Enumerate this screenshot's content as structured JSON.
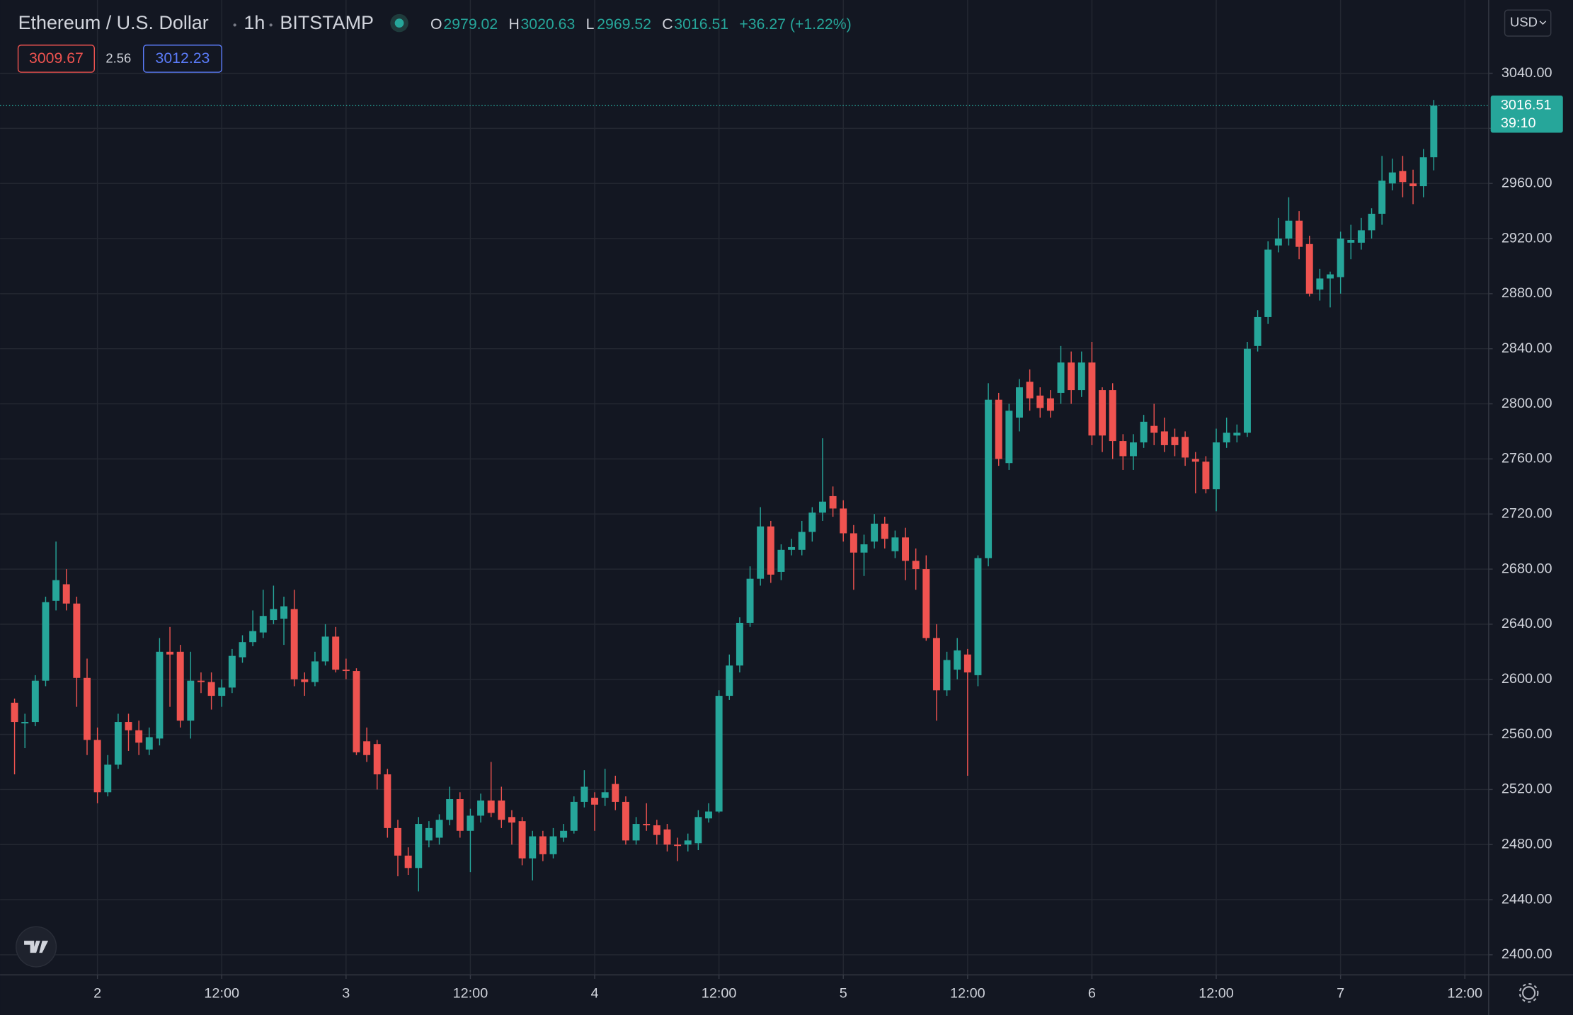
{
  "chart_data": {
    "type": "candlestick",
    "title": "Ethereum / U.S. Dollar",
    "interval": "1h",
    "exchange": "BITSTAMP",
    "ohlc_labels": [
      "O",
      "H",
      "L",
      "C"
    ],
    "change": "+36.27 (+1.22%)",
    "sell": 3009.67,
    "spread": 2.56,
    "buy": 3012.23,
    "countdown": "39:10",
    "currency": "USD",
    "up_color": "#26a69a",
    "down_color": "#ef5350",
    "grid": true,
    "ylim": [
      2385.4,
      3093.2
    ],
    "yticks": [
      {
        "value": 2400,
        "label": "2400.00"
      },
      {
        "value": 2440,
        "label": "2440.00"
      },
      {
        "value": 2480,
        "label": "2480.00"
      },
      {
        "value": 2520,
        "label": "2520.00"
      },
      {
        "value": 2560,
        "label": "2560.00"
      },
      {
        "value": 2600,
        "label": "2600.00"
      },
      {
        "value": 2640,
        "label": "2640.00"
      },
      {
        "value": 2680,
        "label": "2680.00"
      },
      {
        "value": 2720,
        "label": "2720.00"
      },
      {
        "value": 2760,
        "label": "2760.00"
      },
      {
        "value": 2800,
        "label": "2800.00"
      },
      {
        "value": 2840,
        "label": "2840.00"
      },
      {
        "value": 2880,
        "label": "2880.00"
      },
      {
        "value": 2920,
        "label": "2920.00"
      },
      {
        "value": 2960,
        "label": "2960.00"
      },
      {
        "value": 3000,
        "label": "3000.00"
      },
      {
        "value": 3040,
        "label": "3040.00"
      }
    ],
    "xlim": [
      -9.4,
      134.3
    ],
    "xticks": [
      {
        "value": 0,
        "label": "2"
      },
      {
        "value": 12,
        "label": "12:00"
      },
      {
        "value": 24,
        "label": "3"
      },
      {
        "value": 36,
        "label": "12:00"
      },
      {
        "value": 48,
        "label": "4"
      },
      {
        "value": 60,
        "label": "12:00"
      },
      {
        "value": 72,
        "label": "5"
      },
      {
        "value": 84,
        "label": "12:00"
      },
      {
        "value": 96,
        "label": "6"
      },
      {
        "value": 108,
        "label": "12:00"
      },
      {
        "value": 120,
        "label": "7"
      },
      {
        "value": 132,
        "label": "12:00"
      }
    ],
    "x": [
      -8,
      -7,
      -6,
      -5,
      -4,
      -3,
      -2,
      -1,
      0,
      1,
      2,
      3,
      4,
      5,
      6,
      7,
      8,
      9,
      10,
      11,
      12,
      13,
      14,
      15,
      16,
      17,
      18,
      19,
      20,
      21,
      22,
      23,
      24,
      25,
      26,
      27,
      28,
      29,
      30,
      31,
      32,
      33,
      34,
      35,
      36,
      37,
      38,
      39,
      40,
      41,
      42,
      43,
      44,
      45,
      46,
      47,
      48,
      49,
      50,
      51,
      52,
      53,
      54,
      55,
      56,
      57,
      58,
      59,
      60,
      61,
      62,
      63,
      64,
      65,
      66,
      67,
      68,
      69,
      70,
      71,
      72,
      73,
      74,
      75,
      76,
      77,
      78,
      79,
      80,
      81,
      82,
      83,
      84,
      85,
      86,
      87,
      88,
      89,
      90,
      91,
      92,
      93,
      94,
      95,
      96,
      97,
      98,
      99,
      100,
      101,
      102,
      103,
      104,
      105,
      106,
      107,
      108,
      109,
      110,
      111,
      112,
      113,
      114,
      115,
      116,
      117,
      118,
      119,
      120,
      121,
      122,
      123,
      124,
      125,
      126,
      127,
      128,
      129
    ],
    "open": [
      2583,
      2568,
      2569,
      2599,
      2657,
      2669,
      2655,
      2601,
      2556,
      2518,
      2538,
      2569,
      2563,
      2549,
      2557,
      2620,
      2620,
      2570,
      2599,
      2598,
      2588,
      2594,
      2616,
      2627,
      2634,
      2643,
      2644,
      2651,
      2600,
      2598,
      2613,
      2631,
      2607,
      2606,
      2555,
      2553,
      2531,
      2492,
      2472,
      2463,
      2483,
      2485,
      2498,
      2513,
      2490,
      2501,
      2512,
      2512,
      2500,
      2497,
      2470,
      2486,
      2473,
      2485,
      2490,
      2511,
      2514,
      2514,
      2524,
      2511,
      2483,
      2495,
      2494,
      2491,
      2480,
      2480,
      2481,
      2499,
      2504,
      2588,
      2610,
      2641,
      2673,
      2711,
      2678,
      2694,
      2694,
      2707,
      2721,
      2733,
      2724,
      2706,
      2692,
      2700,
      2713,
      2693,
      2703,
      2686,
      2680,
      2630,
      2592,
      2607,
      2618,
      2603,
      2688,
      2803,
      2757,
      2790,
      2816,
      2806,
      2804,
      2808,
      2830,
      2810,
      2830,
      2810,
      2810,
      2773,
      2762,
      2772,
      2784,
      2780,
      2776,
      2776,
      2760,
      2758,
      2738,
      2772,
      2777,
      2779,
      2842,
      2863,
      2915,
      2920,
      2933,
      2916,
      2883,
      2891,
      2892,
      2917,
      2917,
      2926,
      2938,
      2960,
      2969,
      2960,
      2958,
      2979.02
    ],
    "high": [
      2586,
      2575,
      2603,
      2660,
      2700,
      2680,
      2660,
      2615,
      2565,
      2545,
      2575,
      2575,
      2570,
      2565,
      2630,
      2638,
      2625,
      2620,
      2605,
      2605,
      2600,
      2622,
      2632,
      2650,
      2665,
      2668,
      2660,
      2665,
      2605,
      2620,
      2640,
      2638,
      2615,
      2608,
      2565,
      2556,
      2535,
      2498,
      2478,
      2500,
      2497,
      2502,
      2522,
      2518,
      2506,
      2517,
      2540,
      2522,
      2505,
      2500,
      2490,
      2490,
      2492,
      2495,
      2515,
      2534,
      2518,
      2535,
      2530,
      2515,
      2500,
      2510,
      2498,
      2495,
      2485,
      2488,
      2505,
      2510,
      2592,
      2618,
      2645,
      2682,
      2725,
      2715,
      2698,
      2702,
      2715,
      2725,
      2775,
      2740,
      2730,
      2712,
      2705,
      2720,
      2718,
      2708,
      2710,
      2695,
      2690,
      2640,
      2620,
      2630,
      2622,
      2690,
      2815,
      2808,
      2800,
      2818,
      2825,
      2812,
      2810,
      2842,
      2838,
      2838,
      2845,
      2812,
      2815,
      2778,
      2778,
      2792,
      2800,
      2790,
      2782,
      2780,
      2765,
      2762,
      2782,
      2790,
      2785,
      2845,
      2868,
      2918,
      2935,
      2950,
      2940,
      2922,
      2898,
      2896,
      2925,
      2930,
      2935,
      2942,
      2980,
      2978,
      2980,
      2970,
      2985,
      3020.63
    ],
    "low": [
      2531,
      2550,
      2566,
      2595,
      2650,
      2650,
      2580,
      2545,
      2510,
      2515,
      2535,
      2548,
      2545,
      2545,
      2552,
      2580,
      2565,
      2557,
      2590,
      2578,
      2580,
      2590,
      2612,
      2624,
      2630,
      2640,
      2625,
      2595,
      2588,
      2595,
      2610,
      2605,
      2600,
      2545,
      2540,
      2520,
      2485,
      2457,
      2458,
      2446,
      2478,
      2480,
      2494,
      2485,
      2460,
      2496,
      2500,
      2492,
      2480,
      2465,
      2454,
      2468,
      2470,
      2482,
      2488,
      2507,
      2490,
      2508,
      2505,
      2480,
      2480,
      2490,
      2480,
      2475,
      2468,
      2475,
      2476,
      2496,
      2503,
      2585,
      2605,
      2638,
      2668,
      2670,
      2672,
      2690,
      2690,
      2700,
      2715,
      2718,
      2700,
      2665,
      2675,
      2695,
      2695,
      2688,
      2672,
      2665,
      2628,
      2570,
      2588,
      2600,
      2530,
      2595,
      2682,
      2755,
      2752,
      2780,
      2795,
      2790,
      2790,
      2800,
      2800,
      2805,
      2770,
      2765,
      2760,
      2752,
      2752,
      2768,
      2770,
      2765,
      2762,
      2755,
      2735,
      2735,
      2722,
      2768,
      2772,
      2776,
      2838,
      2858,
      2910,
      2915,
      2905,
      2878,
      2875,
      2870,
      2880,
      2905,
      2912,
      2920,
      2930,
      2955,
      2950,
      2945,
      2950,
      2969.52
    ],
    "close": [
      2569,
      2569,
      2599,
      2656,
      2672,
      2655,
      2601,
      2556,
      2518,
      2538,
      2569,
      2563,
      2554,
      2558,
      2620,
      2618,
      2570,
      2599,
      2598,
      2588,
      2594,
      2617,
      2627,
      2635,
      2646,
      2651,
      2653,
      2600,
      2598,
      2613,
      2631,
      2607,
      2606,
      2547,
      2545,
      2531,
      2492,
      2472,
      2463,
      2495,
      2492,
      2498,
      2513,
      2490,
      2501,
      2512,
      2503,
      2498,
      2496,
      2470,
      2486,
      2473,
      2486,
      2490,
      2511,
      2522,
      2509,
      2518,
      2511,
      2483,
      2495,
      2494,
      2487,
      2480,
      2479,
      2483,
      2500,
      2504,
      2588,
      2610,
      2641,
      2673,
      2711,
      2676,
      2694,
      2696,
      2707,
      2721,
      2729,
      2724,
      2706,
      2692,
      2698,
      2713,
      2702,
      2703,
      2686,
      2680,
      2630,
      2592,
      2614,
      2621,
      2605,
      2688,
      2803,
      2760,
      2795,
      2812,
      2804,
      2797,
      2795,
      2830,
      2810,
      2830,
      2777,
      2777,
      2773,
      2762,
      2772,
      2787,
      2779,
      2770,
      2770,
      2761,
      2758,
      2738,
      2772,
      2779,
      2779,
      2840,
      2863,
      2912,
      2920,
      2933,
      2914,
      2880,
      2891,
      2894,
      2920,
      2919,
      2926,
      2938,
      2962,
      2968,
      2961,
      2958,
      2979,
      3016.51
    ]
  }
}
